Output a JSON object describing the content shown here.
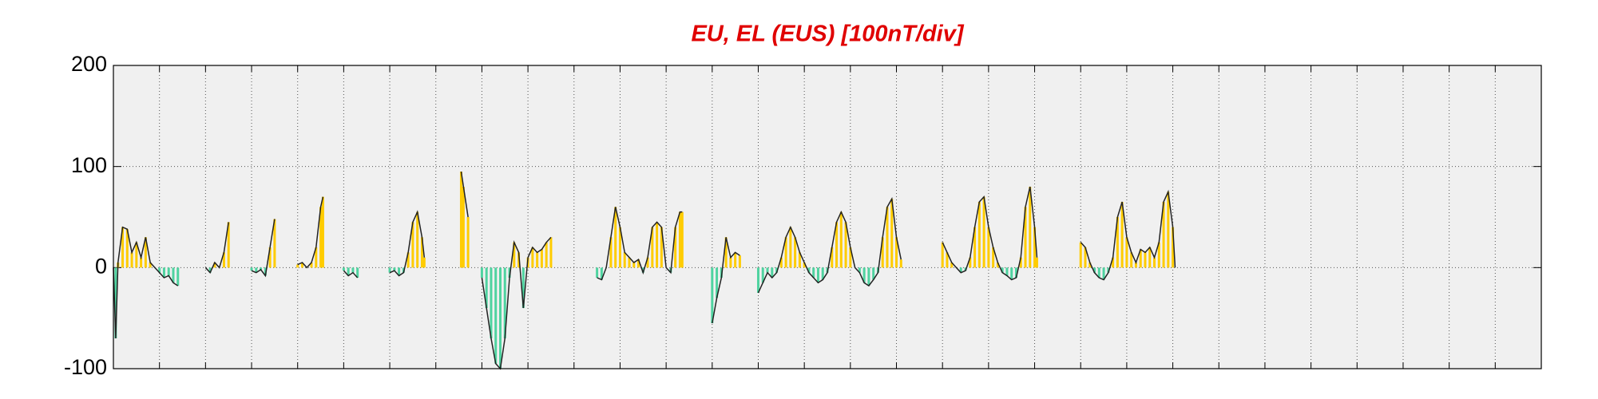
{
  "chart_data": {
    "type": "line",
    "title": "EU, EL (EUS)  [100nT/div]",
    "title_color": "#e00000",
    "line_color": "#222222",
    "positive_color": "#ffcc00",
    "negative_color": "#4fd3a0",
    "xlim": [
      0,
      31
    ],
    "xticks": [
      1,
      2,
      3,
      4,
      5,
      6,
      7,
      8,
      9,
      10,
      11,
      12,
      13,
      14,
      15,
      16,
      17,
      18,
      19,
      20,
      21,
      22,
      23,
      24,
      25,
      26,
      27,
      28,
      29,
      30
    ],
    "ylim": [
      -100,
      200
    ],
    "yticks": [
      -100,
      0,
      100,
      200
    ],
    "grid": true,
    "x": [
      0,
      0.05,
      0.1,
      0.2,
      0.3,
      0.4,
      0.5,
      0.6,
      0.7,
      0.8,
      0.9,
      1.0,
      1.1,
      1.2,
      1.3,
      1.4,
      1.7,
      2.0,
      2.1,
      2.2,
      2.3,
      2.4,
      2.5,
      2.75,
      3.0,
      3.1,
      3.2,
      3.3,
      3.4,
      3.5,
      3.75,
      4.0,
      4.1,
      4.2,
      4.3,
      4.4,
      4.5,
      4.55,
      4.8,
      5.0,
      5.1,
      5.2,
      5.3,
      5.6,
      6.0,
      6.1,
      6.2,
      6.3,
      6.4,
      6.5,
      6.6,
      6.7,
      6.75,
      7.1,
      7.55,
      7.6,
      7.7,
      7.85,
      8.0,
      8.1,
      8.2,
      8.3,
      8.4,
      8.5,
      8.6,
      8.7,
      8.8,
      8.9,
      9.0,
      9.1,
      9.2,
      9.3,
      9.4,
      9.5,
      10.0,
      10.5,
      10.6,
      10.7,
      10.8,
      10.9,
      11.0,
      11.1,
      11.2,
      11.3,
      11.4,
      11.5,
      11.6,
      11.7,
      11.8,
      11.9,
      12.0,
      12.1,
      12.2,
      12.3,
      12.35,
      12.7,
      13.0,
      13.1,
      13.2,
      13.3,
      13.4,
      13.5,
      13.6,
      13.8,
      14.0,
      14.1,
      14.2,
      14.3,
      14.4,
      14.5,
      14.6,
      14.7,
      14.8,
      14.9,
      15.0,
      15.1,
      15.2,
      15.3,
      15.4,
      15.5,
      15.6,
      15.7,
      15.8,
      15.9,
      16.0,
      16.1,
      16.2,
      16.3,
      16.4,
      16.5,
      16.6,
      16.7,
      16.8,
      16.9,
      17.0,
      17.1,
      17.5,
      18.0,
      18.1,
      18.2,
      18.3,
      18.4,
      18.5,
      18.6,
      18.7,
      18.8,
      18.9,
      19.0,
      19.1,
      19.2,
      19.3,
      19.4,
      19.5,
      19.6,
      19.7,
      19.8,
      19.9,
      20.0,
      20.05,
      20.5,
      21.0,
      21.1,
      21.2,
      21.3,
      21.4,
      21.5,
      21.6,
      21.7,
      21.8,
      21.9,
      22.0,
      22.1,
      22.2,
      22.3,
      22.4,
      22.5,
      22.6,
      22.7,
      22.8,
      22.9,
      23.0,
      23.05
    ],
    "values": [
      0,
      -70,
      5,
      40,
      38,
      15,
      25,
      10,
      30,
      5,
      0,
      -5,
      -10,
      -8,
      -15,
      -18,
      null,
      0,
      -5,
      5,
      0,
      15,
      45,
      null,
      -3,
      -5,
      -2,
      -8,
      20,
      48,
      null,
      3,
      5,
      0,
      5,
      20,
      60,
      70,
      null,
      -3,
      -8,
      -5,
      -10,
      null,
      -5,
      -3,
      -8,
      -5,
      15,
      45,
      55,
      30,
      10,
      null,
      95,
      80,
      50,
      null,
      -10,
      -40,
      -70,
      -95,
      -100,
      -70,
      -10,
      25,
      15,
      -40,
      10,
      20,
      15,
      18,
      25,
      30,
      null,
      -10,
      -12,
      0,
      30,
      60,
      40,
      15,
      10,
      5,
      8,
      -5,
      10,
      40,
      45,
      40,
      0,
      -5,
      40,
      55,
      55,
      null,
      -55,
      -30,
      -10,
      30,
      10,
      15,
      12,
      null,
      -25,
      -15,
      -5,
      -10,
      -5,
      10,
      30,
      40,
      30,
      15,
      5,
      -5,
      -10,
      -15,
      -12,
      -5,
      20,
      45,
      55,
      45,
      20,
      0,
      -5,
      -15,
      -18,
      -12,
      -5,
      30,
      60,
      68,
      30,
      8,
      null,
      25,
      15,
      5,
      0,
      -5,
      -3,
      10,
      40,
      65,
      70,
      40,
      20,
      5,
      -5,
      -8,
      -12,
      -10,
      10,
      60,
      80,
      40,
      10,
      null,
      25,
      20,
      5,
      -5,
      -10,
      -12,
      -5,
      10,
      50,
      65,
      30,
      15,
      5,
      18,
      15,
      20,
      10,
      25,
      65,
      75,
      40,
      0
    ]
  }
}
